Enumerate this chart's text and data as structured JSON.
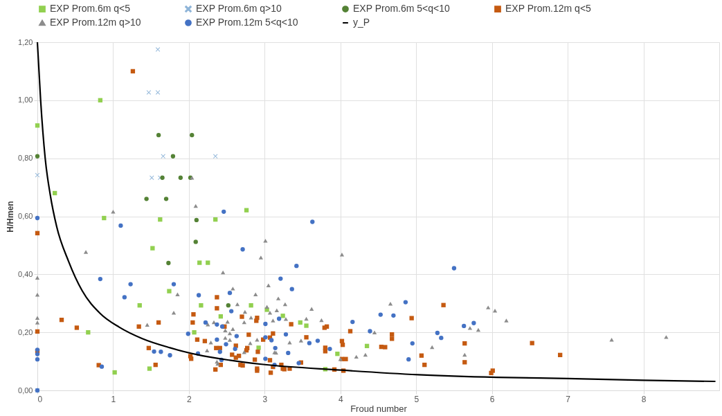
{
  "chart_data": {
    "type": "scatter",
    "xlabel": "Froud number",
    "ylabel": "H/Hmen",
    "xlim": [
      0,
      9
    ],
    "xticks": [
      0,
      1,
      2,
      3,
      4,
      5,
      6,
      7,
      8
    ],
    "ylim": [
      0,
      1.2
    ],
    "yticks": [
      {
        "value": 0,
        "label": "0,00"
      },
      {
        "value": 0.2,
        "label": "0,20"
      },
      {
        "value": 0.4,
        "label": "0,40"
      },
      {
        "value": 0.6,
        "label": "0,60"
      },
      {
        "value": 0.8,
        "label": "0,80"
      },
      {
        "value": 1.0,
        "label": "1,00"
      },
      {
        "value": 1.2,
        "label": "1,20"
      }
    ],
    "grid": true,
    "legend": "top",
    "series": [
      {
        "name": "EXP Prom.6m q<5",
        "marker": "square",
        "color": "#92d050",
        "x": [
          0,
          0.83,
          0.23,
          0.88,
          1.62,
          2.35,
          2.76,
          0.67,
          1.52,
          2.14,
          2.25,
          1.74,
          1.35,
          2.16,
          2.82,
          2.42,
          2.07,
          2.92,
          1.48,
          1.02,
          3.03,
          3.24,
          3.47,
          3.55,
          3.96,
          3.8,
          4.35
        ],
        "values": [
          0.913,
          1.0,
          0.68,
          0.594,
          0.589,
          0.589,
          0.621,
          0.2,
          0.49,
          0.44,
          0.44,
          0.342,
          0.293,
          0.293,
          0.293,
          0.255,
          0.2,
          0.147,
          0.075,
          0.062,
          0.278,
          0.257,
          0.234,
          0.223,
          0.126,
          0.073,
          0.153
        ]
      },
      {
        "name": "EXP Prom.6m q>10",
        "marker": "cross",
        "color": "#8eb4d8",
        "x": [
          1.59,
          1.47,
          1.59,
          1.66,
          2.35,
          0,
          1.51,
          1.62,
          0
        ],
        "values": [
          1.175,
          1.027,
          1.027,
          0.807,
          0.807,
          0.742,
          0.733,
          0.733,
          0.0
        ]
      },
      {
        "name": "EXP Prom.6m 5<q<10",
        "marker": "circle",
        "color": "#548235",
        "x": [
          0,
          1.6,
          2.04,
          1.79,
          1.65,
          1.89,
          2.02,
          1.44,
          1.7,
          2.1,
          1.73,
          2.09,
          2.52
        ],
        "values": [
          0.807,
          0.88,
          0.88,
          0.807,
          0.733,
          0.733,
          0.733,
          0.66,
          0.66,
          0.587,
          0.439,
          0.512,
          0.293
        ]
      },
      {
        "name": "EXP Prom.12m q<5",
        "marker": "square",
        "color": "#c55a11",
        "x": [
          1.26,
          0,
          2.37,
          2.37,
          0.32,
          0.52,
          1.34,
          1.6,
          2.06,
          2.05,
          2.47,
          2.7,
          2.9,
          2.89,
          0,
          2.79,
          2.11,
          2.21,
          2.98,
          2.62,
          0,
          1.47,
          2.02,
          2.03,
          2.36,
          2.41,
          2.77,
          2.76,
          2.91,
          2.57,
          2.62,
          2.66,
          2.42,
          2.68,
          2.71,
          2.87,
          2.9,
          2.9,
          2.35,
          0.81,
          1.56,
          3.35,
          3.79,
          3.82,
          4.94,
          5.36,
          4.13,
          3.11,
          3.55,
          4.68,
          4.68,
          3.07,
          4.02,
          4.03,
          4.54,
          4.59,
          5.64,
          3.8,
          3.8,
          5.07,
          3.07,
          4.02,
          4.07,
          3.48,
          5.11,
          5.64,
          3.11,
          3.22,
          3.24,
          3.26,
          3.33,
          3.08,
          3.92,
          4.04,
          5.99,
          6.01,
          6.53,
          6.9
        ],
        "values": [
          1.1,
          0.542,
          0.321,
          0.283,
          0.243,
          0.216,
          0.22,
          0.234,
          0.262,
          0.234,
          0.22,
          0.254,
          0.25,
          0.24,
          0.203,
          0.192,
          0.175,
          0.17,
          0.175,
          0.154,
          0.135,
          0.146,
          0.118,
          0.109,
          0.146,
          0.146,
          0.146,
          0.138,
          0.133,
          0.123,
          0.113,
          0.119,
          0.088,
          0.088,
          0.086,
          0.106,
          0.075,
          0.068,
          0.072,
          0.087,
          0.088,
          0.228,
          0.216,
          0.22,
          0.249,
          0.294,
          0.204,
          0.196,
          0.183,
          0.193,
          0.178,
          0.182,
          0.17,
          0.157,
          0.15,
          0.149,
          0.162,
          0.147,
          0.135,
          0.12,
          0.104,
          0.108,
          0.108,
          0.096,
          0.088,
          0.097,
          0.081,
          0.088,
          0.075,
          0.073,
          0.075,
          0.061,
          0.072,
          0.068,
          0.06,
          0.068,
          0.163,
          0.122
        ]
      },
      {
        "name": "EXP Prom.12m q>10",
        "marker": "triangle",
        "color": "#8c8c8c",
        "x": [
          2.04,
          1.0,
          2.09,
          0.64,
          2.95,
          0,
          0,
          2.45,
          1.85,
          2.58,
          2.88,
          2.64,
          1.8,
          2.74,
          0,
          0,
          1.45,
          2.82,
          2.25,
          2.33,
          2.51,
          2.48,
          2.54,
          2.58,
          2.73,
          2.29,
          2.48,
          2.54,
          2.81,
          2.9,
          2.24,
          2.73,
          2.37,
          2.38,
          3.01,
          4.02,
          3.05,
          3.18,
          3.27,
          3.03,
          3.07,
          3.16,
          3.62,
          4.66,
          5.95,
          6.04,
          3.11,
          3.28,
          3.55,
          3.75,
          4.45,
          5.71,
          5.82,
          3.33,
          3.48,
          3.13,
          3.15,
          4.21,
          4.33,
          5.64,
          4.0,
          5.21,
          6.19,
          7.58,
          8.3
        ],
        "values": [
          0.733,
          0.616,
          0.636,
          0.477,
          0.458,
          0.388,
          0.33,
          0.407,
          0.331,
          0.351,
          0.331,
          0.297,
          0.268,
          0.271,
          0.25,
          0.234,
          0.226,
          0.251,
          0.227,
          0.235,
          0.237,
          0.207,
          0.197,
          0.212,
          0.235,
          0.165,
          0.181,
          0.174,
          0.163,
          0.175,
          0.138,
          0.132,
          0.099,
          0.092,
          0.516,
          0.468,
          0.362,
          0.317,
          0.297,
          0.288,
          0.268,
          0.276,
          0.281,
          0.299,
          0.286,
          0.275,
          0.241,
          0.246,
          0.247,
          0.242,
          0.2,
          0.215,
          0.209,
          0.165,
          0.172,
          0.131,
          0.13,
          0.116,
          0.123,
          0.123,
          0.108,
          0.149,
          0.241,
          0.175,
          0.184
        ]
      },
      {
        "name": "EXP Prom.12m 5<q<10",
        "marker": "circle",
        "color": "#4472c4",
        "x": [
          0,
          1.1,
          2.46,
          2.71,
          0.83,
          1.23,
          1.8,
          1.15,
          2.13,
          2.54,
          2.56,
          2.22,
          2.37,
          2.44,
          1.99,
          2.37,
          2.63,
          2.49,
          0,
          0,
          0,
          1.54,
          1.63,
          1.75,
          2.12,
          2.41,
          2.61,
          2.43,
          0.85,
          0,
          3.63,
          3.42,
          5.5,
          3.21,
          3.36,
          4.86,
          4.53,
          4.7,
          3.19,
          3.01,
          4.16,
          4.39,
          3.28,
          5.28,
          5.33,
          5.63,
          5.76,
          3.01,
          3.09,
          3.59,
          3.7,
          4.95,
          3.86,
          3.14,
          3.31,
          3.01,
          4.9,
          3.45,
          3.13
        ],
        "values": [
          0.594,
          0.568,
          0.616,
          0.486,
          0.384,
          0.366,
          0.366,
          0.321,
          0.328,
          0.336,
          0.273,
          0.234,
          0.227,
          0.22,
          0.195,
          0.175,
          0.187,
          0.159,
          0.14,
          0.125,
          0.107,
          0.134,
          0.133,
          0.121,
          0.127,
          0.133,
          0.143,
          0.105,
          0.082,
          0.0,
          0.581,
          0.429,
          0.421,
          0.385,
          0.349,
          0.304,
          0.261,
          0.258,
          0.247,
          0.229,
          0.236,
          0.204,
          0.193,
          0.198,
          0.181,
          0.222,
          0.232,
          0.183,
          0.173,
          0.163,
          0.171,
          0.162,
          0.143,
          0.146,
          0.129,
          0.109,
          0.107,
          0.094,
          0.088
        ]
      },
      {
        "name": "y_P",
        "type": "line",
        "marker": "none",
        "line_style": "solid",
        "color": "#000000",
        "x": [
          0,
          0.043,
          0.103,
          0.17,
          0.255,
          0.41,
          0.59,
          0.83,
          1.08,
          1.38,
          1.75,
          2.11,
          2.54,
          2.96,
          4.0,
          5.03,
          6.06,
          7.0,
          8.0,
          8.95
        ],
        "values": [
          1.2,
          1.0,
          0.8,
          0.674,
          0.564,
          0.446,
          0.344,
          0.265,
          0.218,
          0.179,
          0.147,
          0.123,
          0.104,
          0.09,
          0.07,
          0.054,
          0.045,
          0.041,
          0.035,
          0.031
        ]
      }
    ]
  }
}
